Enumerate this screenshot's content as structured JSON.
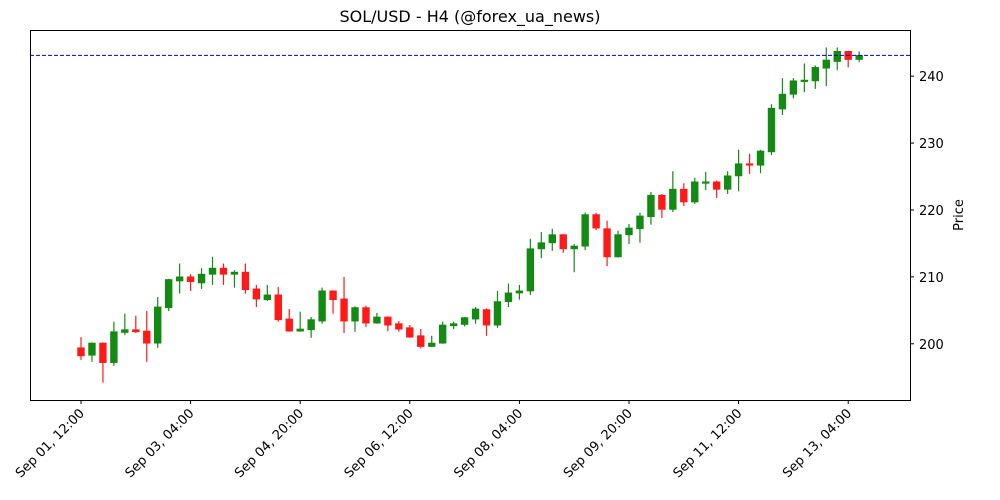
{
  "chart_data": {
    "type": "candlestick",
    "title": "SOL/USD - H4 (@forex_ua_news)",
    "xlabel": "",
    "ylabel": "Price",
    "ylim": [
      191.6,
      246.9
    ],
    "y_ticks": [
      200,
      210,
      220,
      230,
      240
    ],
    "x_tick_labels": [
      "Sep 01, 12:00",
      "Sep 03, 04:00",
      "Sep 04, 20:00",
      "Sep 06, 12:00",
      "Sep 08, 04:00",
      "Sep 09, 20:00",
      "Sep 11, 12:00",
      "Sep 13, 04:00"
    ],
    "x_tick_every": 10,
    "y_axis_side": "right",
    "grid": false,
    "up_color": "#138a13",
    "down_color": "#ff1a1a",
    "last_price_line": {
      "value": 243.1,
      "color": "#0000cc",
      "style": "dashed"
    },
    "x": [
      "Sep 01, 12:00",
      "Sep 01, 16:00",
      "Sep 01, 20:00",
      "Sep 02, 00:00",
      "Sep 02, 04:00",
      "Sep 02, 08:00",
      "Sep 02, 12:00",
      "Sep 02, 16:00",
      "Sep 02, 20:00",
      "Sep 03, 00:00",
      "Sep 03, 04:00",
      "Sep 03, 08:00",
      "Sep 03, 12:00",
      "Sep 03, 16:00",
      "Sep 03, 20:00",
      "Sep 04, 00:00",
      "Sep 04, 04:00",
      "Sep 04, 08:00",
      "Sep 04, 12:00",
      "Sep 04, 16:00",
      "Sep 04, 20:00",
      "Sep 05, 00:00",
      "Sep 05, 04:00",
      "Sep 05, 08:00",
      "Sep 05, 12:00",
      "Sep 05, 16:00",
      "Sep 05, 20:00",
      "Sep 06, 00:00",
      "Sep 06, 04:00",
      "Sep 06, 08:00",
      "Sep 06, 12:00",
      "Sep 06, 16:00",
      "Sep 06, 20:00",
      "Sep 07, 00:00",
      "Sep 07, 04:00",
      "Sep 07, 08:00",
      "Sep 07, 12:00",
      "Sep 07, 16:00",
      "Sep 07, 20:00",
      "Sep 08, 00:00",
      "Sep 08, 04:00",
      "Sep 08, 08:00",
      "Sep 08, 12:00",
      "Sep 08, 16:00",
      "Sep 08, 20:00",
      "Sep 09, 00:00",
      "Sep 09, 04:00",
      "Sep 09, 08:00",
      "Sep 09, 12:00",
      "Sep 09, 16:00",
      "Sep 09, 20:00",
      "Sep 10, 00:00",
      "Sep 10, 04:00",
      "Sep 10, 08:00",
      "Sep 10, 12:00",
      "Sep 10, 16:00",
      "Sep 10, 20:00",
      "Sep 11, 00:00",
      "Sep 11, 04:00",
      "Sep 11, 08:00",
      "Sep 11, 12:00",
      "Sep 11, 16:00",
      "Sep 11, 20:00",
      "Sep 12, 00:00",
      "Sep 12, 04:00",
      "Sep 12, 08:00",
      "Sep 12, 12:00",
      "Sep 12, 16:00",
      "Sep 12, 20:00",
      "Sep 13, 00:00",
      "Sep 13, 04:00",
      "Sep 13, 08:00"
    ],
    "ohlc_fields": [
      "open",
      "high",
      "low",
      "close"
    ],
    "ohlc": [
      [
        199.4,
        201.0,
        197.6,
        198.2
      ],
      [
        198.3,
        200.2,
        197.3,
        200.1
      ],
      [
        200.1,
        200.2,
        194.2,
        197.2
      ],
      [
        197.2,
        203.3,
        196.7,
        201.8
      ],
      [
        201.7,
        204.5,
        201.3,
        202.1
      ],
      [
        202.1,
        204.2,
        201.6,
        201.8
      ],
      [
        201.9,
        204.9,
        197.3,
        200.1
      ],
      [
        200.1,
        207.0,
        199.4,
        205.5
      ],
      [
        205.4,
        209.7,
        204.9,
        209.6
      ],
      [
        209.4,
        212.0,
        207.5,
        210.0
      ],
      [
        210.0,
        210.4,
        207.9,
        209.3
      ],
      [
        209.1,
        211.3,
        208.2,
        210.4
      ],
      [
        210.4,
        213.0,
        208.8,
        211.3
      ],
      [
        211.3,
        212.0,
        208.8,
        210.4
      ],
      [
        210.4,
        211.0,
        208.4,
        210.7
      ],
      [
        210.7,
        212.0,
        207.5,
        208.1
      ],
      [
        208.2,
        208.8,
        205.5,
        206.7
      ],
      [
        206.6,
        208.8,
        206.4,
        207.3
      ],
      [
        207.3,
        208.5,
        203.3,
        203.6
      ],
      [
        203.7,
        205.2,
        201.8,
        201.9
      ],
      [
        201.9,
        204.8,
        201.8,
        202.2
      ],
      [
        202.1,
        204.0,
        200.9,
        203.6
      ],
      [
        203.4,
        208.4,
        203.0,
        207.9
      ],
      [
        207.9,
        208.0,
        204.5,
        206.6
      ],
      [
        206.7,
        210.0,
        201.6,
        203.4
      ],
      [
        203.4,
        205.6,
        201.8,
        205.4
      ],
      [
        205.4,
        205.7,
        202.5,
        203.1
      ],
      [
        203.1,
        204.6,
        203.0,
        204.0
      ],
      [
        204.0,
        204.1,
        201.9,
        202.8
      ],
      [
        203.0,
        203.4,
        201.8,
        202.2
      ],
      [
        202.4,
        202.8,
        200.9,
        201.0
      ],
      [
        201.2,
        202.2,
        199.3,
        199.6
      ],
      [
        199.6,
        201.2,
        199.5,
        200.1
      ],
      [
        200.1,
        203.3,
        200.0,
        202.8
      ],
      [
        202.7,
        203.3,
        202.2,
        203.0
      ],
      [
        202.9,
        204.0,
        202.6,
        203.9
      ],
      [
        203.7,
        205.5,
        203.0,
        205.2
      ],
      [
        205.1,
        205.3,
        201.2,
        202.8
      ],
      [
        202.8,
        207.9,
        202.4,
        206.3
      ],
      [
        206.3,
        209.0,
        205.5,
        207.6
      ],
      [
        207.6,
        208.8,
        206.6,
        207.9
      ],
      [
        207.9,
        215.7,
        207.3,
        214.2
      ],
      [
        214.2,
        216.7,
        212.8,
        215.1
      ],
      [
        215.1,
        217.2,
        213.9,
        216.3
      ],
      [
        216.3,
        216.4,
        213.6,
        214.2
      ],
      [
        214.2,
        214.9,
        210.7,
        214.6
      ],
      [
        214.6,
        219.6,
        214.0,
        219.3
      ],
      [
        219.3,
        219.6,
        217.0,
        217.3
      ],
      [
        217.2,
        218.4,
        211.6,
        213.0
      ],
      [
        213.0,
        216.9,
        212.9,
        216.3
      ],
      [
        216.3,
        217.9,
        214.9,
        217.3
      ],
      [
        217.2,
        219.6,
        215.1,
        219.1
      ],
      [
        219.0,
        222.7,
        217.8,
        222.2
      ],
      [
        222.2,
        222.4,
        218.8,
        220.1
      ],
      [
        220.1,
        225.8,
        219.7,
        223.1
      ],
      [
        223.1,
        224.0,
        220.6,
        221.2
      ],
      [
        221.2,
        224.8,
        220.9,
        224.2
      ],
      [
        224.0,
        225.7,
        223.0,
        224.2
      ],
      [
        224.2,
        224.4,
        221.8,
        223.1
      ],
      [
        223.1,
        225.8,
        222.4,
        225.1
      ],
      [
        225.1,
        229.0,
        222.8,
        226.9
      ],
      [
        226.9,
        228.4,
        225.4,
        226.7
      ],
      [
        226.7,
        229.0,
        225.5,
        228.8
      ],
      [
        228.7,
        235.8,
        228.2,
        235.2
      ],
      [
        235.1,
        239.7,
        234.2,
        237.3
      ],
      [
        237.3,
        239.7,
        236.7,
        239.3
      ],
      [
        239.2,
        241.9,
        237.6,
        239.4
      ],
      [
        239.3,
        241.6,
        238.1,
        241.3
      ],
      [
        241.2,
        244.3,
        238.5,
        242.4
      ],
      [
        242.2,
        244.3,
        240.9,
        243.7
      ],
      [
        243.7,
        243.8,
        241.3,
        242.5
      ],
      [
        242.5,
        243.7,
        242.1,
        243.1
      ]
    ]
  }
}
